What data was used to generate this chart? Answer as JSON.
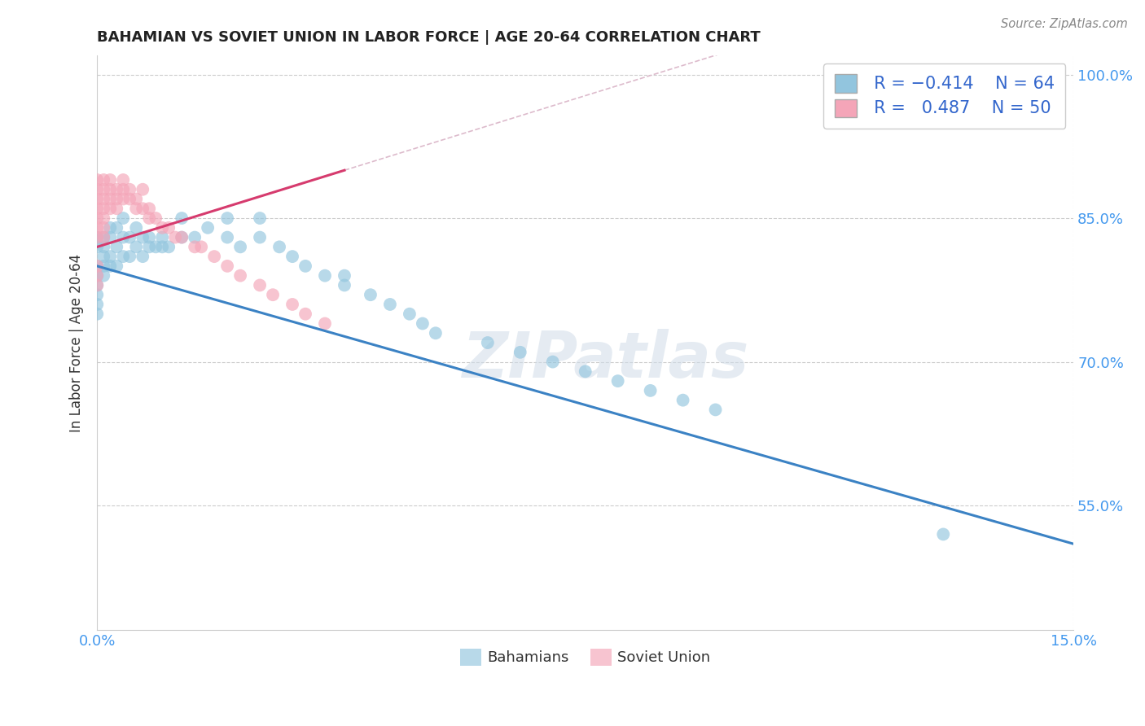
{
  "title": "BAHAMIAN VS SOVIET UNION IN LABOR FORCE | AGE 20-64 CORRELATION CHART",
  "source": "Source: ZipAtlas.com",
  "ylabel": "In Labor Force | Age 20-64",
  "xlim": [
    0.0,
    0.15
  ],
  "ylim": [
    0.42,
    1.02
  ],
  "yticks": [
    0.55,
    0.7,
    0.85,
    1.0
  ],
  "ytick_labels": [
    "55.0%",
    "70.0%",
    "85.0%",
    "100.0%"
  ],
  "xticks": [
    0.0,
    0.15
  ],
  "xtick_labels": [
    "0.0%",
    "15.0%"
  ],
  "color_bahamian": "#92c5de",
  "color_soviet": "#f4a5b8",
  "color_line_bahamian": "#3b82c4",
  "color_line_soviet": "#d63b6e",
  "watermark_text": "ZIPatlas",
  "title_color": "#222222",
  "tick_color": "#4499ee",
  "grid_color": "#cccccc",
  "bahamian_x": [
    0.0,
    0.0,
    0.0,
    0.0,
    0.0,
    0.0,
    0.0,
    0.0,
    0.001,
    0.001,
    0.001,
    0.001,
    0.001,
    0.002,
    0.002,
    0.002,
    0.002,
    0.003,
    0.003,
    0.003,
    0.004,
    0.004,
    0.004,
    0.005,
    0.005,
    0.006,
    0.006,
    0.007,
    0.007,
    0.008,
    0.008,
    0.009,
    0.01,
    0.01,
    0.011,
    0.013,
    0.013,
    0.015,
    0.017,
    0.02,
    0.02,
    0.022,
    0.025,
    0.025,
    0.028,
    0.03,
    0.032,
    0.035,
    0.038,
    0.038,
    0.042,
    0.045,
    0.048,
    0.05,
    0.052,
    0.06,
    0.065,
    0.07,
    0.075,
    0.08,
    0.085,
    0.09,
    0.095,
    0.13
  ],
  "bahamian_y": [
    0.83,
    0.82,
    0.8,
    0.79,
    0.78,
    0.77,
    0.76,
    0.75,
    0.83,
    0.82,
    0.81,
    0.8,
    0.79,
    0.84,
    0.83,
    0.81,
    0.8,
    0.84,
    0.82,
    0.8,
    0.85,
    0.83,
    0.81,
    0.83,
    0.81,
    0.84,
    0.82,
    0.83,
    0.81,
    0.83,
    0.82,
    0.82,
    0.83,
    0.82,
    0.82,
    0.85,
    0.83,
    0.83,
    0.84,
    0.85,
    0.83,
    0.82,
    0.85,
    0.83,
    0.82,
    0.81,
    0.8,
    0.79,
    0.79,
    0.78,
    0.77,
    0.76,
    0.75,
    0.74,
    0.73,
    0.72,
    0.71,
    0.7,
    0.69,
    0.68,
    0.67,
    0.66,
    0.65,
    0.52
  ],
  "soviet_x": [
    0.0,
    0.0,
    0.0,
    0.0,
    0.0,
    0.0,
    0.0,
    0.0,
    0.0,
    0.0,
    0.001,
    0.001,
    0.001,
    0.001,
    0.001,
    0.001,
    0.001,
    0.002,
    0.002,
    0.002,
    0.002,
    0.003,
    0.003,
    0.003,
    0.004,
    0.004,
    0.004,
    0.005,
    0.005,
    0.006,
    0.006,
    0.007,
    0.007,
    0.008,
    0.008,
    0.009,
    0.01,
    0.011,
    0.012,
    0.013,
    0.015,
    0.016,
    0.018,
    0.02,
    0.022,
    0.025,
    0.027,
    0.03,
    0.032,
    0.035
  ],
  "soviet_y": [
    0.83,
    0.84,
    0.85,
    0.86,
    0.87,
    0.88,
    0.89,
    0.78,
    0.79,
    0.8,
    0.85,
    0.86,
    0.87,
    0.88,
    0.89,
    0.84,
    0.83,
    0.86,
    0.87,
    0.88,
    0.89,
    0.87,
    0.88,
    0.86,
    0.88,
    0.87,
    0.89,
    0.87,
    0.88,
    0.87,
    0.86,
    0.88,
    0.86,
    0.86,
    0.85,
    0.85,
    0.84,
    0.84,
    0.83,
    0.83,
    0.82,
    0.82,
    0.81,
    0.8,
    0.79,
    0.78,
    0.77,
    0.76,
    0.75,
    0.74
  ],
  "line_b_x0": 0.0,
  "line_b_y0": 0.8,
  "line_b_x1": 0.15,
  "line_b_y1": 0.51,
  "line_s_x0": 0.0,
  "line_s_y0": 0.82,
  "line_s_x1": 0.038,
  "line_s_y1": 0.9
}
